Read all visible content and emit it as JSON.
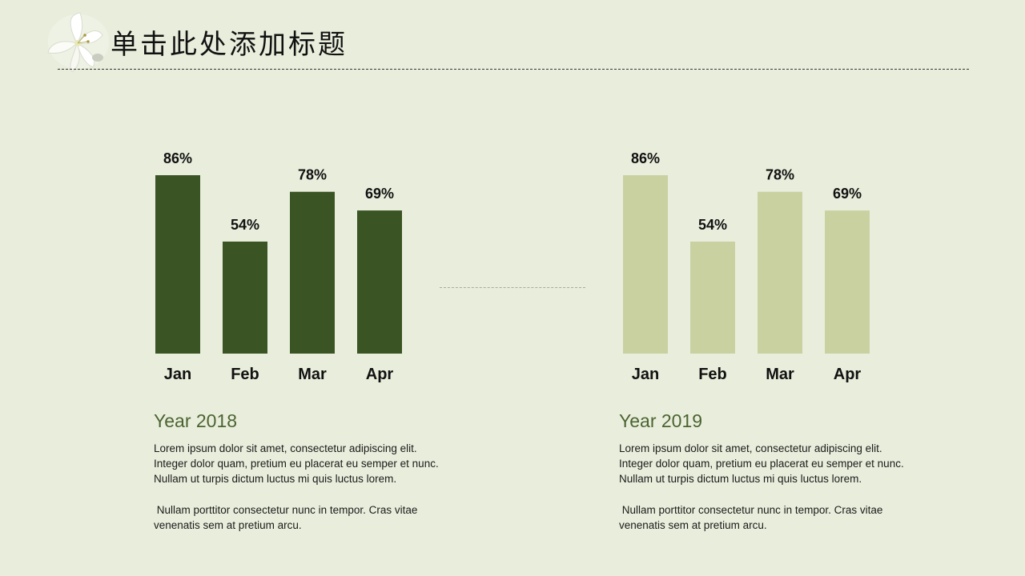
{
  "slide": {
    "title": "单击此处添加标题"
  },
  "panels": [
    {
      "year_label": "Year 2018",
      "paragraph1": "Lorem ipsum dolor sit amet, consectetur adipiscing elit.\nInteger dolor quam, pretium eu placerat eu semper et nunc.\nNullam ut turpis dictum luctus mi quis luctus lorem.",
      "paragraph2": " Nullam porttitor consectetur nunc in tempor. Cras vitae\nvenenatis sem at pretium arcu."
    },
    {
      "year_label": "Year 2019",
      "paragraph1": "Lorem ipsum dolor sit amet, consectetur adipiscing elit.\nInteger dolor quam, pretium eu placerat eu semper et nunc.\nNullam ut turpis dictum luctus mi quis luctus lorem.",
      "paragraph2": " Nullam porttitor consectetur nunc in tempor. Cras vitae\nvenenatis sem at pretium arcu."
    }
  ],
  "chart_data": [
    {
      "type": "bar",
      "categories": [
        "Jan",
        "Feb",
        "Mar",
        "Apr"
      ],
      "values": [
        86,
        54,
        78,
        69
      ],
      "data_labels": [
        "86%",
        "54%",
        "78%",
        "69%"
      ],
      "ylim": [
        0,
        86
      ],
      "color": "#3a5424",
      "grid": false,
      "legend": "none"
    },
    {
      "type": "bar",
      "categories": [
        "Jan",
        "Feb",
        "Mar",
        "Apr"
      ],
      "values": [
        86,
        54,
        78,
        69
      ],
      "data_labels": [
        "86%",
        "54%",
        "78%",
        "69%"
      ],
      "ylim": [
        0,
        86
      ],
      "color": "#c9d1a1",
      "grid": false,
      "legend": "none"
    }
  ]
}
